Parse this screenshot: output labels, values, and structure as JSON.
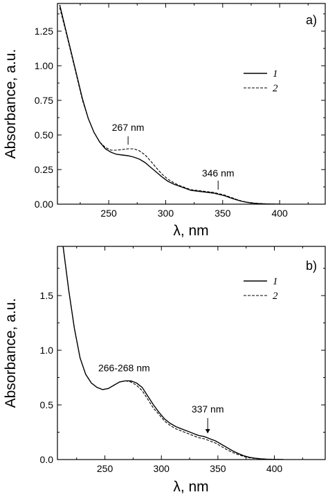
{
  "colors": {
    "series_1": "#000000",
    "series_2": "#000000",
    "axis": "#000000",
    "background": "#ffffff"
  },
  "chart_data": [
    {
      "type": "line",
      "panel_label": "a)",
      "xlabel": "λ, nm",
      "ylabel": "Absorbance, a.u.",
      "xlim": [
        205,
        440
      ],
      "ylim": [
        0,
        1.45
      ],
      "xticks": [
        250,
        300,
        350,
        400
      ],
      "yticks": [
        0.0,
        0.25,
        0.5,
        0.75,
        1.0,
        1.25
      ],
      "ytick_labels": [
        "0.00",
        "0.25",
        "0.50",
        "0.75",
        "1.00",
        "1.25"
      ],
      "legend": {
        "placement": "top-right",
        "entries": [
          "1",
          "2"
        ]
      },
      "series": [
        {
          "name": "1",
          "style": "solid",
          "x": [
            207,
            212,
            217,
            222,
            227,
            232,
            237,
            242,
            247,
            252,
            257,
            262,
            267,
            272,
            277,
            282,
            287,
            292,
            297,
            302,
            307,
            312,
            317,
            322,
            327,
            332,
            337,
            342,
            347,
            352,
            357,
            362,
            367,
            372,
            377,
            382,
            387,
            392,
            397,
            400
          ],
          "y": [
            1.44,
            1.27,
            1.1,
            0.93,
            0.76,
            0.62,
            0.52,
            0.45,
            0.4,
            0.375,
            0.36,
            0.355,
            0.35,
            0.34,
            0.325,
            0.3,
            0.265,
            0.23,
            0.195,
            0.165,
            0.145,
            0.13,
            0.115,
            0.1,
            0.095,
            0.09,
            0.085,
            0.08,
            0.07,
            0.06,
            0.045,
            0.032,
            0.02,
            0.012,
            0.007,
            0.004,
            0.002,
            0.001,
            0.0,
            0.0
          ]
        },
        {
          "name": "2",
          "style": "dashed",
          "x": [
            207,
            212,
            217,
            222,
            227,
            232,
            237,
            242,
            247,
            252,
            257,
            262,
            267,
            272,
            277,
            282,
            287,
            292,
            297,
            302,
            307,
            312,
            317,
            322,
            327,
            332,
            337,
            342,
            347,
            352,
            357,
            362,
            367,
            372,
            377,
            382,
            387,
            392,
            397,
            400
          ],
          "y": [
            1.42,
            1.26,
            1.09,
            0.92,
            0.75,
            0.62,
            0.52,
            0.45,
            0.41,
            0.39,
            0.39,
            0.395,
            0.4,
            0.4,
            0.385,
            0.355,
            0.31,
            0.26,
            0.215,
            0.18,
            0.155,
            0.135,
            0.12,
            0.105,
            0.1,
            0.095,
            0.09,
            0.085,
            0.075,
            0.065,
            0.05,
            0.035,
            0.022,
            0.014,
            0.008,
            0.005,
            0.003,
            0.001,
            0.0,
            0.0
          ]
        }
      ],
      "annotations": [
        {
          "text": "267 nm",
          "x": 267,
          "y": 0.4
        },
        {
          "text": "346 nm",
          "x": 346,
          "y": 0.08
        }
      ]
    },
    {
      "type": "line",
      "panel_label": "b)",
      "xlabel": "λ, nm",
      "ylabel": "Absorbance, a.u.",
      "xlim": [
        208,
        445
      ],
      "ylim": [
        0,
        1.95
      ],
      "xticks": [
        250,
        300,
        350,
        400
      ],
      "yticks": [
        0.0,
        0.5,
        1.0,
        1.5
      ],
      "ytick_labels": [
        "0.0",
        "0.5",
        "1.0",
        "1.5"
      ],
      "legend": {
        "placement": "top-right",
        "entries": [
          "1",
          "2"
        ]
      },
      "series": [
        {
          "name": "1",
          "style": "solid",
          "x": [
            213,
            218,
            223,
            228,
            233,
            238,
            243,
            248,
            253,
            258,
            263,
            268,
            273,
            278,
            283,
            288,
            293,
            298,
            303,
            308,
            313,
            318,
            323,
            328,
            333,
            338,
            343,
            348,
            353,
            358,
            363,
            368,
            373,
            378,
            383,
            388,
            393,
            398,
            403,
            408
          ],
          "y": [
            1.95,
            1.55,
            1.2,
            0.93,
            0.78,
            0.7,
            0.66,
            0.64,
            0.65,
            0.68,
            0.71,
            0.72,
            0.72,
            0.7,
            0.66,
            0.58,
            0.5,
            0.43,
            0.37,
            0.33,
            0.3,
            0.28,
            0.26,
            0.24,
            0.22,
            0.21,
            0.19,
            0.17,
            0.14,
            0.11,
            0.08,
            0.055,
            0.035,
            0.02,
            0.012,
            0.007,
            0.004,
            0.002,
            0.001,
            0.0
          ]
        },
        {
          "name": "2",
          "style": "dashed",
          "x": [
            213,
            218,
            223,
            228,
            233,
            238,
            243,
            248,
            253,
            258,
            263,
            268,
            273,
            278,
            283,
            288,
            293,
            298,
            303,
            308,
            313,
            318,
            323,
            328,
            333,
            338,
            343,
            348,
            353,
            358,
            363,
            368,
            373,
            378,
            383,
            388,
            393,
            398,
            403,
            408
          ],
          "y": [
            1.95,
            1.55,
            1.2,
            0.93,
            0.78,
            0.7,
            0.66,
            0.64,
            0.65,
            0.68,
            0.71,
            0.72,
            0.71,
            0.68,
            0.63,
            0.55,
            0.47,
            0.41,
            0.35,
            0.31,
            0.28,
            0.26,
            0.24,
            0.22,
            0.2,
            0.19,
            0.17,
            0.15,
            0.12,
            0.09,
            0.065,
            0.045,
            0.028,
            0.016,
            0.01,
            0.006,
            0.003,
            0.002,
            0.001,
            0.0
          ]
        }
      ],
      "annotations": [
        {
          "text": "266-268 nm",
          "x": 267,
          "y": 0.72
        },
        {
          "text": "337 nm",
          "x": 341,
          "y": 0.19
        }
      ]
    }
  ]
}
